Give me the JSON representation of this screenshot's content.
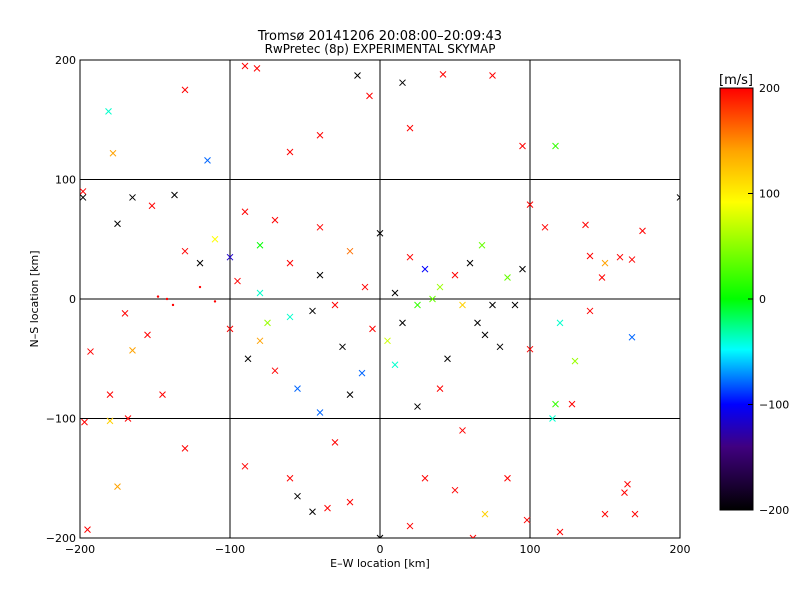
{
  "chart_data": {
    "type": "scatter",
    "title": "Tromsø 20141206 20:08:00–20:09:43",
    "subtitle": "RwPretec (8p) EXPERIMENTAL SKYMAP",
    "xlabel": "E–W location [km]",
    "ylabel": "N–S location [km]",
    "xlim": [
      -200,
      200
    ],
    "ylim": [
      -200,
      200
    ],
    "xticks": [
      -200,
      -100,
      0,
      100,
      200
    ],
    "yticks": [
      -200,
      -100,
      0,
      100,
      200
    ],
    "grid": true,
    "marker_types": [
      "dot",
      "cross"
    ],
    "colorbar": {
      "label": "[m/s]",
      "range": [
        -200,
        200
      ],
      "ticks": [
        200,
        100,
        0,
        -100,
        -200
      ],
      "colors": [
        "#ff0000",
        "#ffa500",
        "#ffff00",
        "#00ff00",
        "#00ffff",
        "#0000ff",
        "#000000"
      ]
    },
    "points": [
      {
        "x": -15,
        "y": 187,
        "v": -200,
        "m": "cross"
      },
      {
        "x": 15,
        "y": 181,
        "v": -200,
        "m": "cross"
      },
      {
        "x": -82,
        "y": 193,
        "v": 200,
        "m": "cross"
      },
      {
        "x": -90,
        "y": 195,
        "v": 200,
        "m": "cross"
      },
      {
        "x": 42,
        "y": 188,
        "v": 200,
        "m": "cross"
      },
      {
        "x": 75,
        "y": 187,
        "v": 200,
        "m": "cross"
      },
      {
        "x": -181,
        "y": 157,
        "v": -40,
        "m": "cross"
      },
      {
        "x": -130,
        "y": 175,
        "v": 200,
        "m": "cross"
      },
      {
        "x": 117,
        "y": 128,
        "v": 20,
        "m": "cross"
      },
      {
        "x": -178,
        "y": 122,
        "v": 140,
        "m": "cross"
      },
      {
        "x": -115,
        "y": 116,
        "v": -80,
        "m": "cross"
      },
      {
        "x": -60,
        "y": 123,
        "v": 200,
        "m": "cross"
      },
      {
        "x": -40,
        "y": 137,
        "v": 200,
        "m": "cross"
      },
      {
        "x": -7,
        "y": 170,
        "v": 200,
        "m": "cross"
      },
      {
        "x": 20,
        "y": 143,
        "v": 200,
        "m": "cross"
      },
      {
        "x": 95,
        "y": 128,
        "v": 200,
        "m": "cross"
      },
      {
        "x": -198,
        "y": 90,
        "v": 200,
        "m": "cross"
      },
      {
        "x": -165,
        "y": 85,
        "v": -200,
        "m": "cross"
      },
      {
        "x": -137,
        "y": 87,
        "v": -200,
        "m": "cross"
      },
      {
        "x": -152,
        "y": 78,
        "v": 200,
        "m": "cross"
      },
      {
        "x": -175,
        "y": 63,
        "v": -200,
        "m": "cross"
      },
      {
        "x": -198,
        "y": 85,
        "v": -200,
        "m": "cross"
      },
      {
        "x": -90,
        "y": 73,
        "v": 200,
        "m": "cross"
      },
      {
        "x": -70,
        "y": 66,
        "v": 200,
        "m": "cross"
      },
      {
        "x": -40,
        "y": 60,
        "v": 200,
        "m": "cross"
      },
      {
        "x": 100,
        "y": 79,
        "v": 200,
        "m": "cross"
      },
      {
        "x": 110,
        "y": 60,
        "v": 200,
        "m": "cross"
      },
      {
        "x": 175,
        "y": 57,
        "v": 200,
        "m": "cross"
      },
      {
        "x": 200,
        "y": 85,
        "v": -200,
        "m": "cross"
      },
      {
        "x": 160,
        "y": 35,
        "v": 200,
        "m": "cross"
      },
      {
        "x": 140,
        "y": 36,
        "v": 200,
        "m": "cross"
      },
      {
        "x": 150,
        "y": 30,
        "v": 140,
        "m": "cross"
      },
      {
        "x": 168,
        "y": 33,
        "v": 200,
        "m": "cross"
      },
      {
        "x": 137,
        "y": 62,
        "v": 200,
        "m": "cross"
      },
      {
        "x": 148,
        "y": 18,
        "v": 200,
        "m": "cross"
      },
      {
        "x": -170,
        "y": -12,
        "v": 200,
        "m": "cross"
      },
      {
        "x": -155,
        "y": -30,
        "v": 200,
        "m": "cross"
      },
      {
        "x": -165,
        "y": -43,
        "v": 140,
        "m": "cross"
      },
      {
        "x": -193,
        "y": -44,
        "v": 200,
        "m": "cross"
      },
      {
        "x": -180,
        "y": -80,
        "v": 200,
        "m": "cross"
      },
      {
        "x": -145,
        "y": -80,
        "v": 200,
        "m": "cross"
      },
      {
        "x": -168,
        "y": -100,
        "v": 200,
        "m": "cross"
      },
      {
        "x": -197,
        "y": -103,
        "v": 200,
        "m": "cross"
      },
      {
        "x": -180,
        "y": -102,
        "v": 120,
        "m": "cross"
      },
      {
        "x": -130,
        "y": -125,
        "v": 200,
        "m": "cross"
      },
      {
        "x": -175,
        "y": -157,
        "v": 140,
        "m": "cross"
      },
      {
        "x": -195,
        "y": -193,
        "v": 200,
        "m": "cross"
      },
      {
        "x": -100,
        "y": -25,
        "v": 200,
        "m": "cross"
      },
      {
        "x": -88,
        "y": -50,
        "v": -200,
        "m": "cross"
      },
      {
        "x": -80,
        "y": -35,
        "v": 140,
        "m": "cross"
      },
      {
        "x": -90,
        "y": -140,
        "v": 200,
        "m": "cross"
      },
      {
        "x": -60,
        "y": -150,
        "v": 200,
        "m": "cross"
      },
      {
        "x": -55,
        "y": -165,
        "v": -200,
        "m": "cross"
      },
      {
        "x": -35,
        "y": -175,
        "v": 200,
        "m": "cross"
      },
      {
        "x": -30,
        "y": -120,
        "v": 200,
        "m": "cross"
      },
      {
        "x": -45,
        "y": -178,
        "v": -200,
        "m": "cross"
      },
      {
        "x": -20,
        "y": -170,
        "v": 200,
        "m": "cross"
      },
      {
        "x": 0,
        "y": -200,
        "v": -200,
        "m": "cross"
      },
      {
        "x": 20,
        "y": -190,
        "v": 200,
        "m": "cross"
      },
      {
        "x": 30,
        "y": -150,
        "v": 200,
        "m": "cross"
      },
      {
        "x": 50,
        "y": -160,
        "v": 200,
        "m": "cross"
      },
      {
        "x": 70,
        "y": -180,
        "v": 120,
        "m": "cross"
      },
      {
        "x": 62,
        "y": -200,
        "v": 200,
        "m": "cross"
      },
      {
        "x": 98,
        "y": -185,
        "v": 200,
        "m": "cross"
      },
      {
        "x": 150,
        "y": -180,
        "v": 200,
        "m": "cross"
      },
      {
        "x": 163,
        "y": -162,
        "v": 200,
        "m": "cross"
      },
      {
        "x": 165,
        "y": -155,
        "v": 200,
        "m": "cross"
      },
      {
        "x": 170,
        "y": -180,
        "v": 200,
        "m": "cross"
      },
      {
        "x": 115,
        "y": -100,
        "v": -40,
        "m": "cross"
      },
      {
        "x": 117,
        "y": -88,
        "v": 20,
        "m": "cross"
      },
      {
        "x": 128,
        "y": -88,
        "v": 200,
        "m": "cross"
      },
      {
        "x": 130,
        "y": -52,
        "v": 60,
        "m": "cross"
      },
      {
        "x": 168,
        "y": -32,
        "v": -80,
        "m": "cross"
      },
      {
        "x": 120,
        "y": -20,
        "v": -40,
        "m": "cross"
      },
      {
        "x": 140,
        "y": -10,
        "v": 200,
        "m": "cross"
      },
      {
        "x": 100,
        "y": -42,
        "v": 200,
        "m": "cross"
      },
      {
        "x": 120,
        "y": -195,
        "v": 200,
        "m": "cross"
      },
      {
        "x": 85,
        "y": -150,
        "v": 200,
        "m": "cross"
      },
      {
        "x": 55,
        "y": -110,
        "v": 200,
        "m": "cross"
      },
      {
        "x": 40,
        "y": -75,
        "v": 200,
        "m": "cross"
      },
      {
        "x": 25,
        "y": -90,
        "v": -200,
        "m": "cross"
      },
      {
        "x": -20,
        "y": -80,
        "v": -200,
        "m": "cross"
      },
      {
        "x": -55,
        "y": -75,
        "v": -80,
        "m": "cross"
      },
      {
        "x": -40,
        "y": -95,
        "v": -80,
        "m": "cross"
      },
      {
        "x": -70,
        "y": -60,
        "v": 200,
        "m": "cross"
      },
      {
        "x": -12,
        "y": -62,
        "v": -80,
        "m": "cross"
      },
      {
        "x": 10,
        "y": -55,
        "v": -40,
        "m": "cross"
      },
      {
        "x": 45,
        "y": -50,
        "v": -200,
        "m": "cross"
      },
      {
        "x": 80,
        "y": -40,
        "v": -200,
        "m": "cross"
      },
      {
        "x": 70,
        "y": -30,
        "v": -200,
        "m": "cross"
      },
      {
        "x": 65,
        "y": -20,
        "v": -200,
        "m": "cross"
      },
      {
        "x": 75,
        "y": -5,
        "v": -200,
        "m": "cross"
      },
      {
        "x": 90,
        "y": -5,
        "v": -200,
        "m": "cross"
      },
      {
        "x": 95,
        "y": 25,
        "v": -200,
        "m": "cross"
      },
      {
        "x": 85,
        "y": 18,
        "v": 40,
        "m": "cross"
      },
      {
        "x": 60,
        "y": 30,
        "v": -200,
        "m": "cross"
      },
      {
        "x": 68,
        "y": 45,
        "v": 40,
        "m": "cross"
      },
      {
        "x": 50,
        "y": 20,
        "v": 200,
        "m": "cross"
      },
      {
        "x": 40,
        "y": 10,
        "v": 60,
        "m": "cross"
      },
      {
        "x": 35,
        "y": 0,
        "v": 40,
        "m": "cross"
      },
      {
        "x": 25,
        "y": -5,
        "v": 20,
        "m": "cross"
      },
      {
        "x": 10,
        "y": 5,
        "v": -200,
        "m": "cross"
      },
      {
        "x": -10,
        "y": 10,
        "v": 200,
        "m": "cross"
      },
      {
        "x": -30,
        "y": -5,
        "v": 200,
        "m": "cross"
      },
      {
        "x": -45,
        "y": -10,
        "v": -200,
        "m": "cross"
      },
      {
        "x": -60,
        "y": -15,
        "v": -40,
        "m": "cross"
      },
      {
        "x": -75,
        "y": -20,
        "v": 60,
        "m": "cross"
      },
      {
        "x": -80,
        "y": 5,
        "v": -40,
        "m": "cross"
      },
      {
        "x": -95,
        "y": 15,
        "v": 200,
        "m": "cross"
      },
      {
        "x": -120,
        "y": 30,
        "v": -200,
        "m": "cross"
      },
      {
        "x": -130,
        "y": 40,
        "v": 200,
        "m": "cross"
      },
      {
        "x": -110,
        "y": 50,
        "v": 100,
        "m": "cross"
      },
      {
        "x": -100,
        "y": 35,
        "v": -120,
        "m": "cross"
      },
      {
        "x": -80,
        "y": 45,
        "v": 0,
        "m": "cross"
      },
      {
        "x": -60,
        "y": 30,
        "v": 200,
        "m": "cross"
      },
      {
        "x": -40,
        "y": 20,
        "v": -200,
        "m": "cross"
      },
      {
        "x": -20,
        "y": 40,
        "v": 160,
        "m": "cross"
      },
      {
        "x": 0,
        "y": 55,
        "v": -200,
        "m": "cross"
      },
      {
        "x": 20,
        "y": 35,
        "v": 200,
        "m": "cross"
      },
      {
        "x": 30,
        "y": 25,
        "v": -100,
        "m": "cross"
      },
      {
        "x": 15,
        "y": -20,
        "v": -200,
        "m": "cross"
      },
      {
        "x": 5,
        "y": -35,
        "v": 80,
        "m": "cross"
      },
      {
        "x": -5,
        "y": -25,
        "v": 200,
        "m": "cross"
      },
      {
        "x": -25,
        "y": -40,
        "v": -200,
        "m": "cross"
      },
      {
        "x": 55,
        "y": -5,
        "v": 120,
        "m": "cross"
      },
      {
        "x": -142,
        "y": 0,
        "v": 200,
        "m": "dot"
      },
      {
        "x": -148,
        "y": 2,
        "v": 200,
        "m": "dot"
      },
      {
        "x": -138,
        "y": -5,
        "v": 200,
        "m": "dot"
      },
      {
        "x": -120,
        "y": 10,
        "v": 200,
        "m": "dot"
      },
      {
        "x": -110,
        "y": -2,
        "v": 200,
        "m": "dot"
      }
    ]
  }
}
